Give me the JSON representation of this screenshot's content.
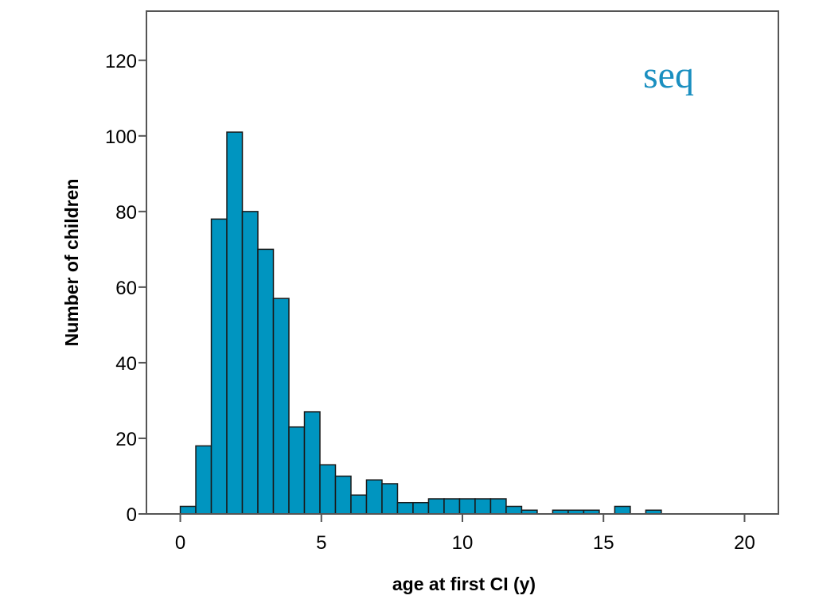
{
  "chart_data": {
    "type": "bar",
    "subtype": "histogram",
    "xlabel": "age at first CI (y)",
    "ylabel": "Number of children",
    "annotation": "seq",
    "annotation_color": "#1a8fc0",
    "bar_color": "#0095c0",
    "bar_edge_color": "#1a1a1a",
    "bin_width": 0.55,
    "xlim": [
      -1.2,
      21.2
    ],
    "ylim": [
      0,
      133
    ],
    "x_ticks": [
      0,
      5,
      10,
      15,
      20
    ],
    "y_ticks": [
      0,
      20,
      40,
      60,
      80,
      100,
      120
    ],
    "grid": false,
    "legend": "none",
    "bins": [
      {
        "x": 0.0,
        "count": 2
      },
      {
        "x": 0.55,
        "count": 18
      },
      {
        "x": 1.1,
        "count": 78
      },
      {
        "x": 1.65,
        "count": 101
      },
      {
        "x": 2.2,
        "count": 80
      },
      {
        "x": 2.75,
        "count": 70
      },
      {
        "x": 3.3,
        "count": 57
      },
      {
        "x": 3.85,
        "count": 23
      },
      {
        "x": 4.4,
        "count": 27
      },
      {
        "x": 4.95,
        "count": 13
      },
      {
        "x": 5.5,
        "count": 10
      },
      {
        "x": 6.05,
        "count": 5
      },
      {
        "x": 6.6,
        "count": 9
      },
      {
        "x": 7.15,
        "count": 8
      },
      {
        "x": 7.7,
        "count": 3
      },
      {
        "x": 8.25,
        "count": 3
      },
      {
        "x": 8.8,
        "count": 4
      },
      {
        "x": 9.35,
        "count": 4
      },
      {
        "x": 9.9,
        "count": 4
      },
      {
        "x": 10.45,
        "count": 4
      },
      {
        "x": 11.0,
        "count": 4
      },
      {
        "x": 11.55,
        "count": 2
      },
      {
        "x": 12.1,
        "count": 1
      },
      {
        "x": 13.2,
        "count": 1
      },
      {
        "x": 13.75,
        "count": 1
      },
      {
        "x": 14.3,
        "count": 1
      },
      {
        "x": 15.4,
        "count": 2
      },
      {
        "x": 16.5,
        "count": 1
      }
    ]
  }
}
